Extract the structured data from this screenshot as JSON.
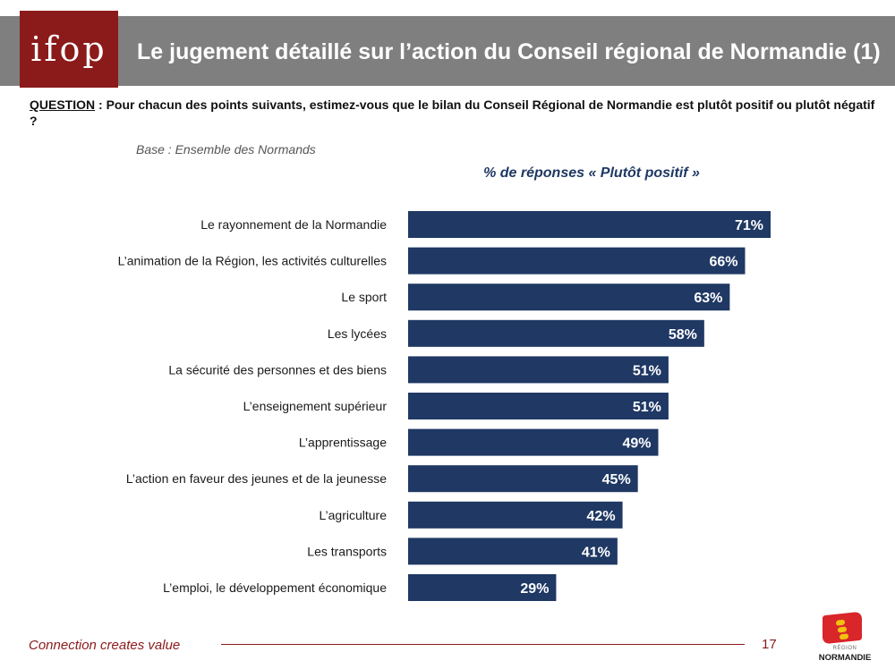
{
  "header": {
    "logo_text": "ifop",
    "title": "Le jugement détaillé sur l’action du Conseil régional de Normandie (1)"
  },
  "question": {
    "label": "QUESTION",
    "text": " : Pour chacun des points suivants, estimez-vous que le bilan du Conseil Régional de Normandie est plutôt positif ou plutôt négatif ?"
  },
  "base": "Base : Ensemble des Normands",
  "footer": {
    "tagline": "Connection creates value",
    "page_number": "17",
    "region_small": "RÉGION",
    "region_name": "NORMANDIE"
  },
  "colors": {
    "bar": "#1f3864",
    "bar_label": "#ffffff",
    "brand": "#8b1a1a"
  },
  "chart_data": {
    "type": "bar",
    "orientation": "horizontal",
    "title": "% de réponses « Plutôt positif »",
    "categories": [
      "Le rayonnement de la Normandie",
      "L’animation de la Région, les activités culturelles",
      "Le sport",
      "Les lycées",
      "La sécurité des personnes et des biens",
      "L’enseignement supérieur",
      "L’apprentissage",
      "L’action en faveur des jeunes et de la jeunesse",
      "L’agriculture",
      "Les transports",
      "L’emploi, le développement économique"
    ],
    "values": [
      71,
      66,
      63,
      58,
      51,
      51,
      49,
      45,
      42,
      41,
      29
    ],
    "value_labels": [
      "71%",
      "66%",
      "63%",
      "58%",
      "51%",
      "51%",
      "49%",
      "45%",
      "42%",
      "41%",
      "29%"
    ],
    "xlim": [
      0,
      100
    ],
    "grid": false,
    "legend": "none"
  }
}
